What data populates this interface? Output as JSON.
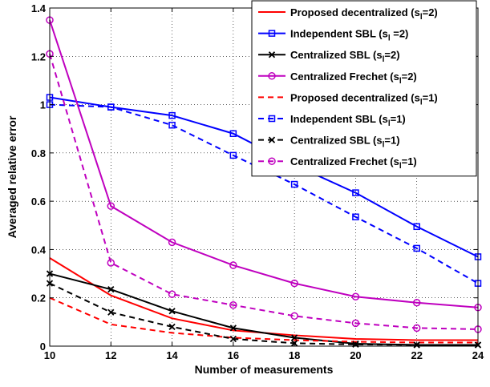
{
  "chart_data": {
    "type": "line",
    "title": "",
    "xlabel": "Number of measurements",
    "ylabel": "Averaged relative error",
    "xlim": [
      10,
      24
    ],
    "ylim": [
      0,
      1.4
    ],
    "xticks": [
      10,
      12,
      14,
      16,
      18,
      20,
      22,
      24
    ],
    "yticks": [
      0,
      0.2,
      0.4,
      0.6,
      0.8,
      1,
      1.2,
      1.4
    ],
    "grid": true,
    "legend_position": "top-right",
    "x": [
      10,
      12,
      14,
      16,
      18,
      20,
      22,
      24
    ],
    "series": [
      {
        "name": "Proposed decentralized (s",
        "subscript": "l",
        "suffix": "=2)",
        "color": "#ff0000",
        "dash": "solid",
        "marker": "none",
        "values": [
          0.365,
          0.21,
          0.115,
          0.065,
          0.045,
          0.03,
          0.025,
          0.025
        ]
      },
      {
        "name": "Independent SBL (s",
        "subscript": "l",
        "suffix": " =2)",
        "color": "#0000ff",
        "dash": "solid",
        "marker": "square",
        "values": [
          1.03,
          0.99,
          0.955,
          0.88,
          0.75,
          0.635,
          0.495,
          0.37
        ]
      },
      {
        "name": "Centralized SBL (s",
        "subscript": "l",
        "suffix": "=2)",
        "color": "#000000",
        "dash": "solid",
        "marker": "x",
        "values": [
          0.3,
          0.235,
          0.145,
          0.075,
          0.035,
          0.01,
          0.005,
          0.005
        ]
      },
      {
        "name": "Centralized Frechet (s",
        "subscript": "l",
        "suffix": "=2)",
        "color": "#bf00bf",
        "dash": "solid",
        "marker": "circle",
        "values": [
          1.35,
          0.58,
          0.43,
          0.335,
          0.26,
          0.205,
          0.18,
          0.16
        ]
      },
      {
        "name": "Proposed decentralized (s",
        "subscript": "l",
        "suffix": "=1)",
        "color": "#ff0000",
        "dash": "dashed",
        "marker": "none",
        "values": [
          0.2,
          0.09,
          0.055,
          0.035,
          0.025,
          0.018,
          0.015,
          0.015
        ]
      },
      {
        "name": "Independent SBL (s",
        "subscript": "l",
        "suffix": "=1)",
        "color": "#0000ff",
        "dash": "dashed",
        "marker": "square",
        "values": [
          1.0,
          0.99,
          0.915,
          0.79,
          0.67,
          0.535,
          0.405,
          0.26
        ]
      },
      {
        "name": "Centralized SBL (s",
        "subscript": "l",
        "suffix": "=1)",
        "color": "#000000",
        "dash": "dashed",
        "marker": "x",
        "values": [
          0.26,
          0.14,
          0.08,
          0.03,
          0.012,
          0.007,
          0.005,
          0.005
        ]
      },
      {
        "name": "Centralized Frechet (s",
        "subscript": "l",
        "suffix": "=1)",
        "color": "#bf00bf",
        "dash": "dashed",
        "marker": "circle",
        "values": [
          1.21,
          0.345,
          0.215,
          0.17,
          0.125,
          0.095,
          0.075,
          0.07
        ]
      }
    ]
  }
}
